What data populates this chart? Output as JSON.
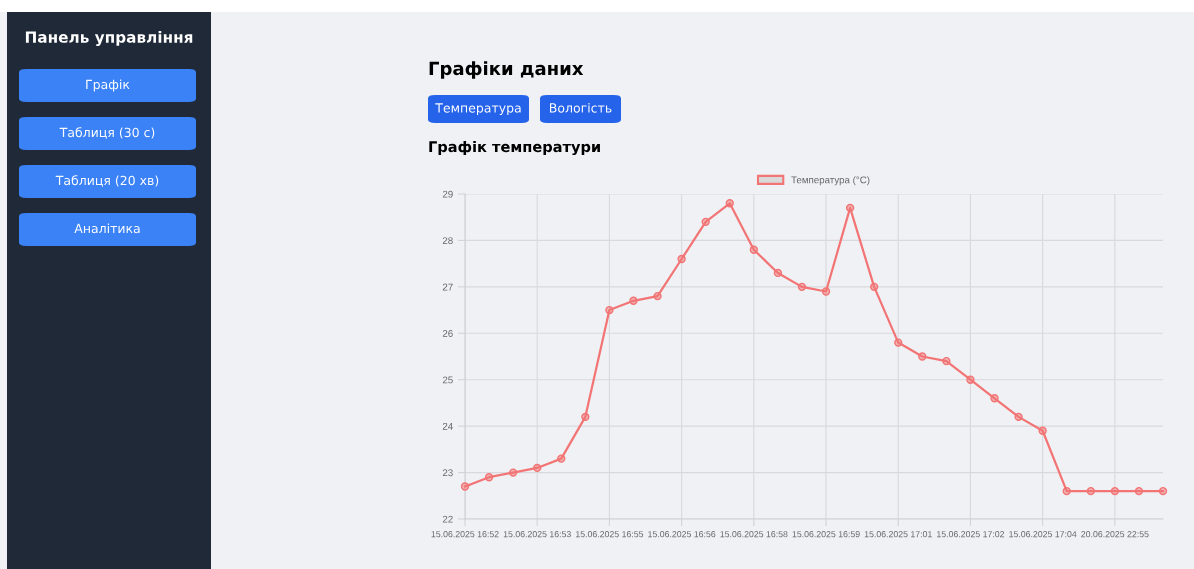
{
  "chart_data": {
    "type": "line",
    "title": "Графіки даних",
    "subtitle": "Графік температури",
    "annotations": [
      "Панель управління",
      "Графік",
      "Таблиця (30 с)",
      "Таблиця (20 хв)",
      "Аналітика",
      "Температура",
      "Вологість"
    ],
    "categories": [
      "15.06.2025 16:52",
      null,
      null,
      "15.06.2025 16:53",
      null,
      null,
      "15.06.2025 16:55",
      null,
      null,
      "15.06.2025 16:56",
      null,
      null,
      "15.06.2025 16:58",
      null,
      null,
      "15.06.2025 16:59",
      null,
      null,
      "15.06.2025 17:01",
      null,
      null,
      "15.06.2025 17:02",
      null,
      null,
      "15.06.2025 17:04",
      null,
      null,
      "20.06.2025 22:55",
      null,
      null
    ],
    "series": [
      {
        "name": "Температура (°C)",
        "color": "#f27474",
        "values": [
          22.7,
          22.9,
          23.0,
          23.1,
          23.3,
          24.2,
          26.5,
          26.7,
          26.8,
          27.6,
          28.4,
          28.8,
          27.8,
          27.3,
          27.0,
          26.9,
          28.7,
          27.0,
          25.8,
          25.5,
          25.4,
          25.0,
          24.6,
          24.2,
          23.9,
          22.6,
          22.6,
          22.6,
          22.6,
          22.6
        ]
      }
    ],
    "ylim": [
      22,
      29
    ],
    "yticks": [
      22,
      23,
      24,
      25,
      26,
      27,
      28,
      29
    ],
    "grid": true,
    "legend": "top",
    "marker": "circle",
    "line_style": "solid"
  }
}
